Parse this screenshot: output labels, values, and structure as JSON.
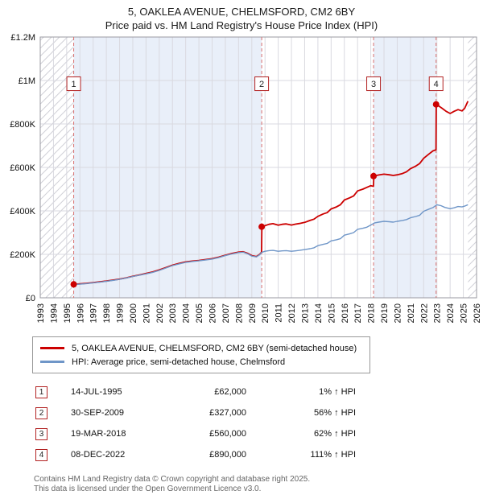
{
  "title": "5, OAKLEA AVENUE, CHELMSFORD, CM2 6BY",
  "subtitle": "Price paid vs. HM Land Registry's House Price Index (HPI)",
  "chart_data": {
    "type": "line",
    "x_axis": {
      "min": 1993,
      "max": 2026
    },
    "x_ticks": [
      1993,
      1994,
      1995,
      1996,
      1997,
      1998,
      1999,
      2000,
      2001,
      2002,
      2003,
      2004,
      2005,
      2006,
      2007,
      2008,
      2009,
      2010,
      2011,
      2012,
      2013,
      2014,
      2015,
      2016,
      2017,
      2018,
      2019,
      2020,
      2021,
      2022,
      2023,
      2024,
      2025,
      2026
    ],
    "y_axis": {
      "min": 0,
      "max": 1200000,
      "tick_step": 200000,
      "tick_labels": [
        "£0",
        "£200K",
        "£400K",
        "£600K",
        "£800K",
        "£1M",
        "£1.2M"
      ]
    },
    "colors": {
      "band": "#e9eff9",
      "guide": "#d87070",
      "grid": "#d9d9e0",
      "frame": "#9a9aa2"
    },
    "hatch_regions": [
      [
        1993,
        1995.53
      ],
      [
        2025.35,
        2026
      ]
    ],
    "shaded_regions": [
      [
        1995.53,
        2009.75
      ],
      [
        2018.21,
        2022.94
      ]
    ],
    "marker_y": 985000,
    "series": [
      {
        "name": "5, OAKLEA AVENUE, CHELMSFORD, CM2 6BY (semi-detached house)",
        "color": "#cc0000",
        "width": 1.8,
        "points": [
          [
            1995.53,
            62000
          ],
          [
            1996,
            64000
          ],
          [
            1996.5,
            66500
          ],
          [
            1997,
            70000
          ],
          [
            1997.5,
            73500
          ],
          [
            1998,
            77000
          ],
          [
            1998.5,
            81500
          ],
          [
            1999,
            86000
          ],
          [
            1999.5,
            92000
          ],
          [
            2000,
            99000
          ],
          [
            2000.5,
            105000
          ],
          [
            2001,
            112000
          ],
          [
            2001.5,
            119000
          ],
          [
            2002,
            128000
          ],
          [
            2002.5,
            139000
          ],
          [
            2003,
            150000
          ],
          [
            2003.5,
            158000
          ],
          [
            2004,
            165000
          ],
          [
            2004.5,
            169000
          ],
          [
            2005,
            172000
          ],
          [
            2005.5,
            176000
          ],
          [
            2006,
            180000
          ],
          [
            2006.5,
            187000
          ],
          [
            2007,
            196000
          ],
          [
            2007.5,
            204000
          ],
          [
            2008,
            210000
          ],
          [
            2008.35,
            212000
          ],
          [
            2008.7,
            204000
          ],
          [
            2009,
            194000
          ],
          [
            2009.35,
            190000
          ],
          [
            2009.6,
            200000
          ],
          [
            2009.74,
            210000
          ],
          [
            2009.76,
            327000
          ],
          [
            2010,
            332000
          ],
          [
            2010.3,
            338000
          ],
          [
            2010.6,
            341000
          ],
          [
            2011,
            334000
          ],
          [
            2011.3,
            338000
          ],
          [
            2011.6,
            340000
          ],
          [
            2012,
            335000
          ],
          [
            2012.3,
            339000
          ],
          [
            2012.6,
            342000
          ],
          [
            2013,
            347000
          ],
          [
            2013.4,
            356000
          ],
          [
            2013.7,
            362000
          ],
          [
            2014,
            375000
          ],
          [
            2014.4,
            386000
          ],
          [
            2014.7,
            392000
          ],
          [
            2015,
            409000
          ],
          [
            2015.4,
            418000
          ],
          [
            2015.7,
            428000
          ],
          [
            2016,
            450000
          ],
          [
            2016.4,
            460000
          ],
          [
            2016.7,
            469000
          ],
          [
            2017,
            492000
          ],
          [
            2017.4,
            500000
          ],
          [
            2017.7,
            508000
          ],
          [
            2018,
            516000
          ],
          [
            2018.2,
            513000
          ],
          [
            2018.23,
            560000
          ],
          [
            2018.6,
            565000
          ],
          [
            2019,
            569000
          ],
          [
            2019.4,
            566000
          ],
          [
            2019.7,
            563000
          ],
          [
            2020,
            566000
          ],
          [
            2020.4,
            572000
          ],
          [
            2020.7,
            580000
          ],
          [
            2021,
            594000
          ],
          [
            2021.4,
            606000
          ],
          [
            2021.7,
            618000
          ],
          [
            2022,
            642000
          ],
          [
            2022.4,
            662000
          ],
          [
            2022.7,
            676000
          ],
          [
            2022.93,
            681000
          ],
          [
            2022.95,
            890000
          ],
          [
            2023.1,
            884000
          ],
          [
            2023.4,
            872000
          ],
          [
            2023.7,
            858000
          ],
          [
            2024,
            848000
          ],
          [
            2024.3,
            858000
          ],
          [
            2024.6,
            866000
          ],
          [
            2024.9,
            860000
          ],
          [
            2025.1,
            872000
          ],
          [
            2025.35,
            905000
          ]
        ]
      },
      {
        "name": "HPI: Average price, semi-detached house, Chelmsford",
        "color": "#6f96c8",
        "width": 1.4,
        "points": [
          [
            1995.53,
            61000
          ],
          [
            1996,
            62500
          ],
          [
            1996.5,
            65000
          ],
          [
            1997,
            69000
          ],
          [
            1997.5,
            72000
          ],
          [
            1998,
            76000
          ],
          [
            1998.5,
            80000
          ],
          [
            1999,
            85000
          ],
          [
            1999.5,
            91000
          ],
          [
            2000,
            98000
          ],
          [
            2000.5,
            104000
          ],
          [
            2001,
            110000
          ],
          [
            2001.5,
            117000
          ],
          [
            2002,
            126000
          ],
          [
            2002.5,
            137000
          ],
          [
            2003,
            148000
          ],
          [
            2003.5,
            156000
          ],
          [
            2004,
            163000
          ],
          [
            2004.5,
            167000
          ],
          [
            2005,
            170000
          ],
          [
            2005.5,
            174000
          ],
          [
            2006,
            178000
          ],
          [
            2006.5,
            185000
          ],
          [
            2007,
            194000
          ],
          [
            2007.5,
            202000
          ],
          [
            2008,
            208000
          ],
          [
            2008.35,
            210000
          ],
          [
            2008.7,
            202000
          ],
          [
            2009,
            192000
          ],
          [
            2009.35,
            188000
          ],
          [
            2009.6,
            198000
          ],
          [
            2009.75,
            209000
          ],
          [
            2010,
            214000
          ],
          [
            2010.3,
            217000
          ],
          [
            2010.6,
            218000
          ],
          [
            2011,
            214000
          ],
          [
            2011.3,
            216000
          ],
          [
            2011.6,
            217000
          ],
          [
            2012,
            214000
          ],
          [
            2012.3,
            216000
          ],
          [
            2012.6,
            218000
          ],
          [
            2013,
            222000
          ],
          [
            2013.4,
            226000
          ],
          [
            2013.7,
            230000
          ],
          [
            2014,
            240000
          ],
          [
            2014.4,
            246000
          ],
          [
            2014.7,
            250000
          ],
          [
            2015,
            262000
          ],
          [
            2015.4,
            267000
          ],
          [
            2015.7,
            272000
          ],
          [
            2016,
            288000
          ],
          [
            2016.4,
            294000
          ],
          [
            2016.7,
            300000
          ],
          [
            2017,
            315000
          ],
          [
            2017.4,
            320000
          ],
          [
            2017.7,
            325000
          ],
          [
            2018,
            335000
          ],
          [
            2018.3,
            345000
          ],
          [
            2018.6,
            348000
          ],
          [
            2019,
            352000
          ],
          [
            2019.4,
            350000
          ],
          [
            2019.7,
            348000
          ],
          [
            2020,
            352000
          ],
          [
            2020.4,
            356000
          ],
          [
            2020.7,
            360000
          ],
          [
            2021,
            368000
          ],
          [
            2021.4,
            374000
          ],
          [
            2021.7,
            380000
          ],
          [
            2022,
            398000
          ],
          [
            2022.4,
            408000
          ],
          [
            2022.7,
            415000
          ],
          [
            2023,
            428000
          ],
          [
            2023.3,
            424000
          ],
          [
            2023.6,
            416000
          ],
          [
            2024,
            410000
          ],
          [
            2024.3,
            414000
          ],
          [
            2024.6,
            420000
          ],
          [
            2024.9,
            418000
          ],
          [
            2025.1,
            422000
          ],
          [
            2025.35,
            428000
          ]
        ]
      }
    ],
    "sales": [
      {
        "n": 1,
        "x": 1995.53,
        "y": 62000,
        "date": "14-JUL-1995",
        "price": "£62,000",
        "hpi": "1% ↑ HPI"
      },
      {
        "n": 2,
        "x": 2009.75,
        "y": 327000,
        "date": "30-SEP-2009",
        "price": "£327,000",
        "hpi": "56% ↑ HPI"
      },
      {
        "n": 3,
        "x": 2018.21,
        "y": 560000,
        "date": "19-MAR-2018",
        "price": "£560,000",
        "hpi": "62% ↑ HPI"
      },
      {
        "n": 4,
        "x": 2022.94,
        "y": 890000,
        "date": "08-DEC-2022",
        "price": "£890,000",
        "hpi": "111% ↑ HPI"
      }
    ]
  },
  "footer": {
    "line1": "Contains HM Land Registry data © Crown copyright and database right 2025.",
    "line2": "This data is licensed under the Open Government Licence v3.0."
  }
}
